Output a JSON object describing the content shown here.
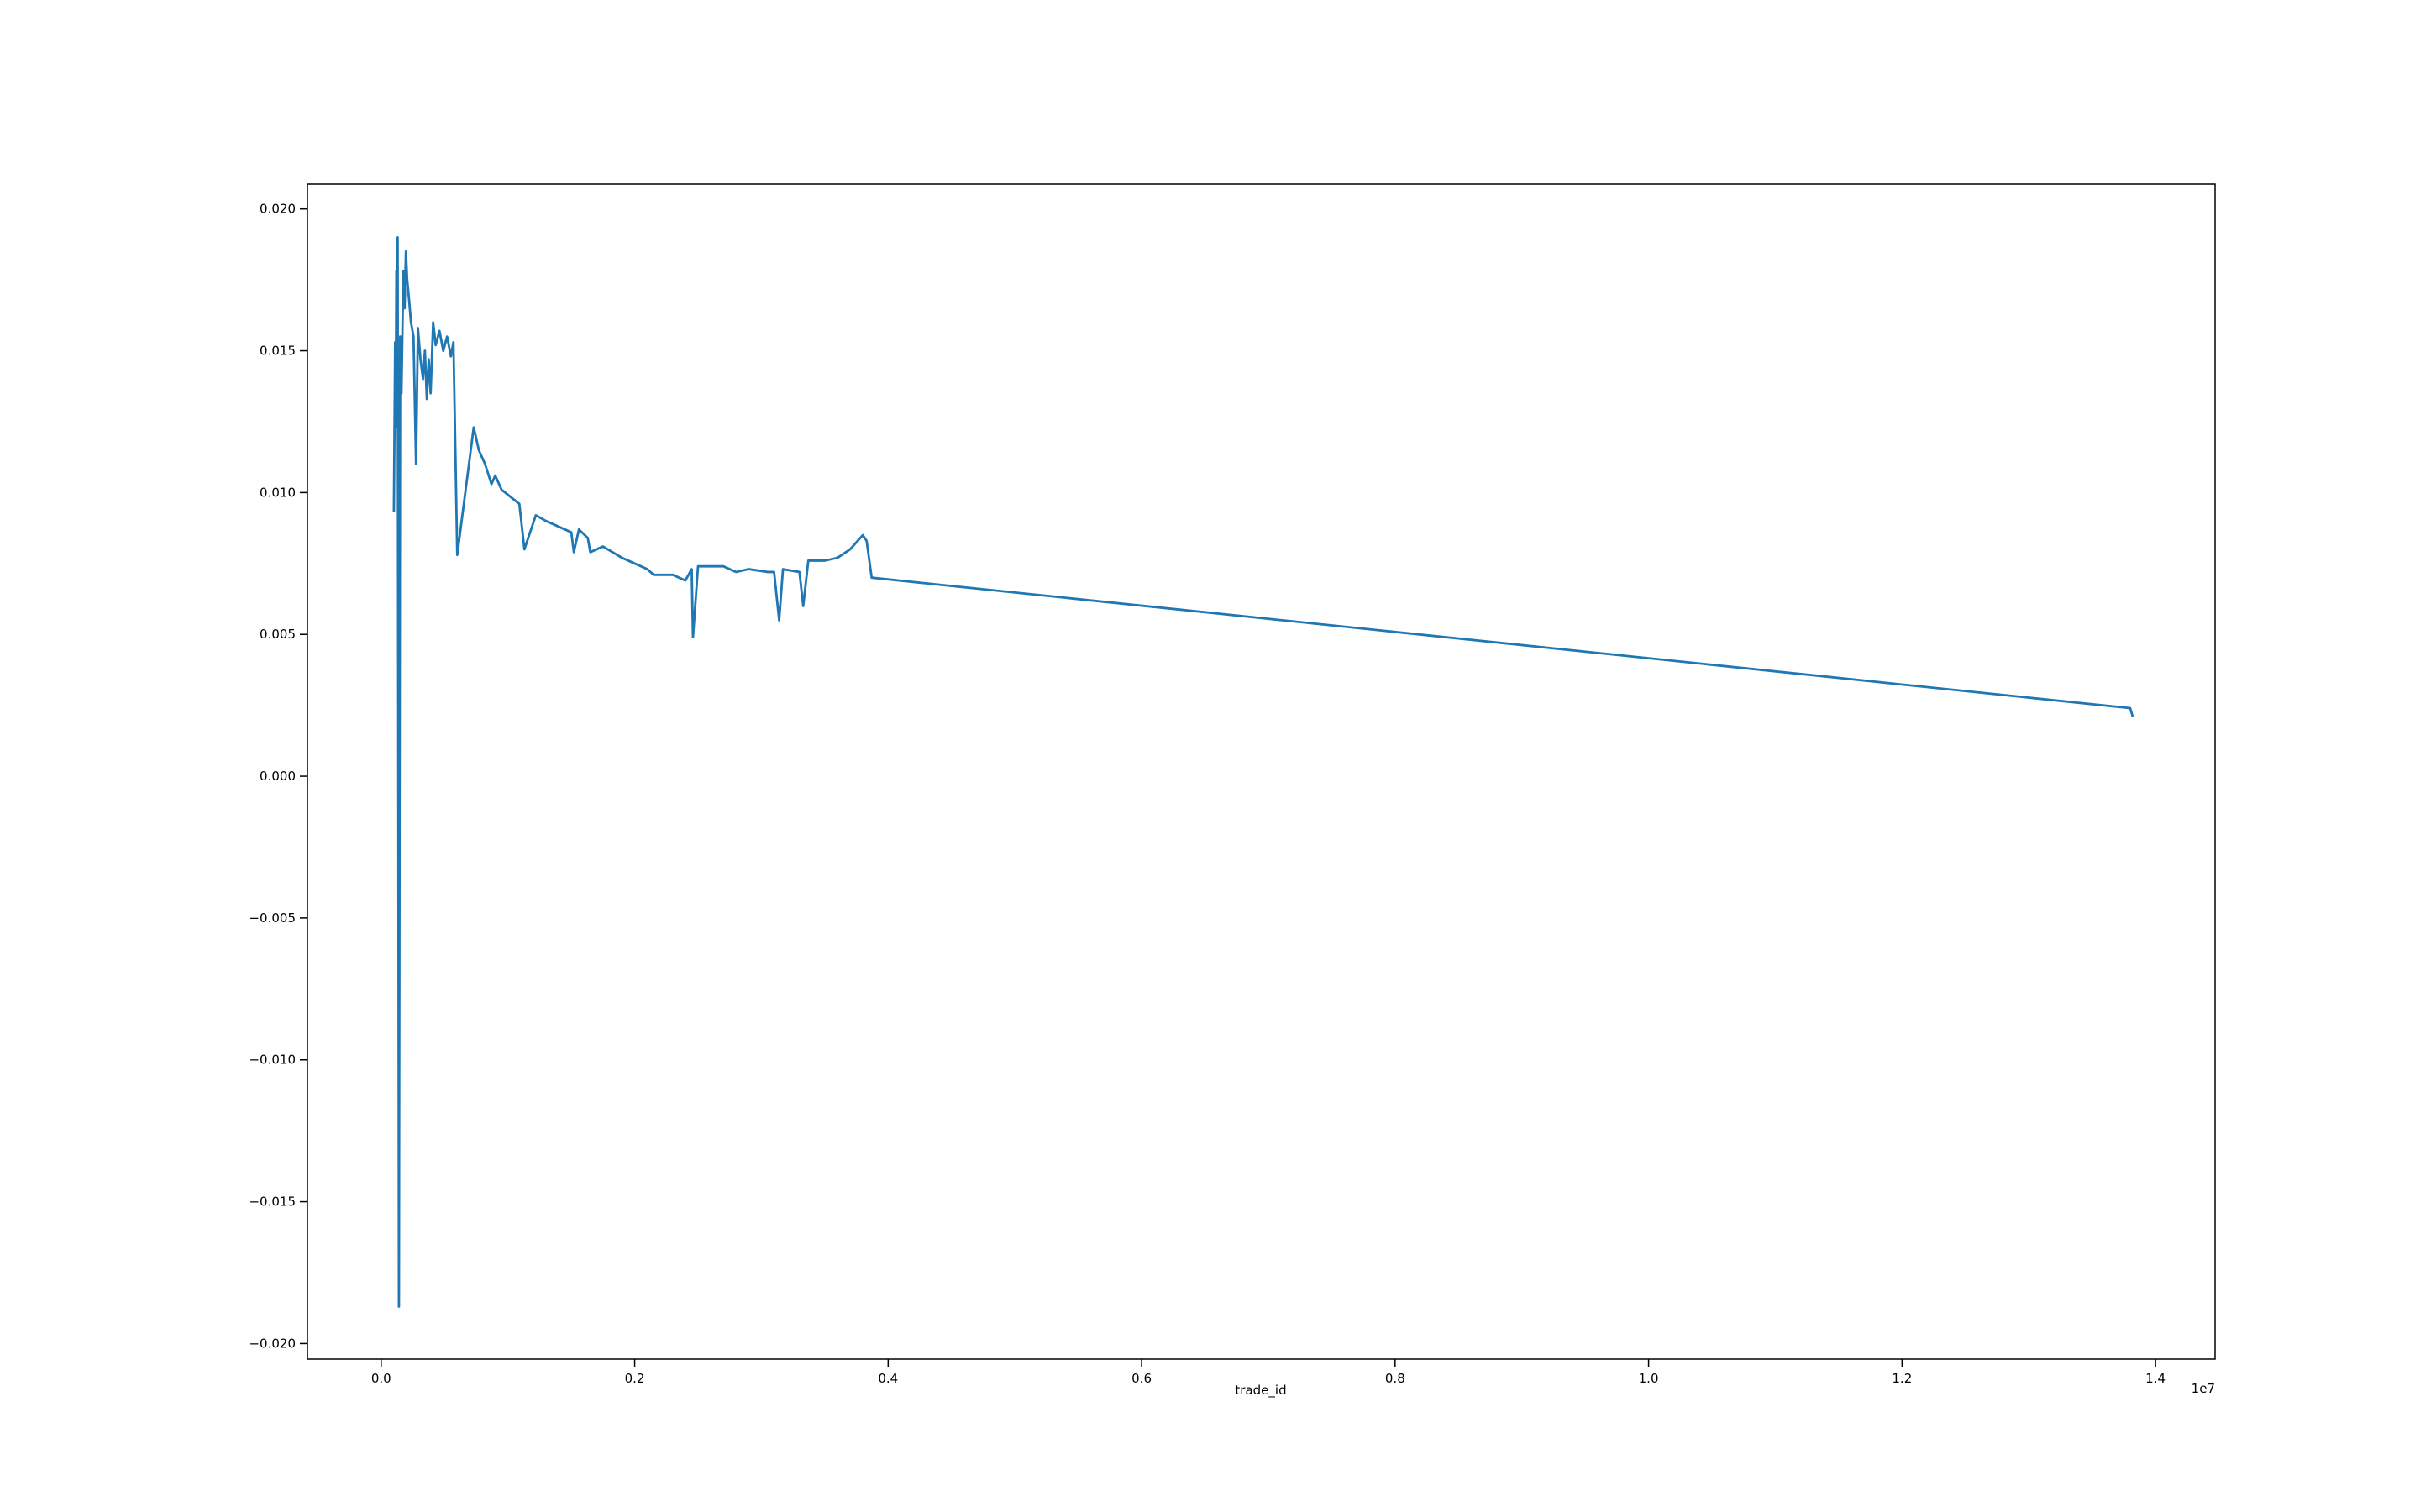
{
  "chart_data": {
    "type": "line",
    "xlabel": "trade_id",
    "x_offset_label": "1e7",
    "color": "#1f77b4",
    "xlim": [
      -582000,
      14470000
    ],
    "ylim": [
      -0.02055,
      0.02088
    ],
    "xticks": [
      {
        "value": 0,
        "label": "0.0"
      },
      {
        "value": 2000000,
        "label": "0.2"
      },
      {
        "value": 4000000,
        "label": "0.4"
      },
      {
        "value": 6000000,
        "label": "0.6"
      },
      {
        "value": 8000000,
        "label": "0.8"
      },
      {
        "value": 10000000,
        "label": "1.0"
      },
      {
        "value": 12000000,
        "label": "1.2"
      },
      {
        "value": 14000000,
        "label": "1.4"
      }
    ],
    "yticks": [
      {
        "value": -0.02,
        "label": "−0.020"
      },
      {
        "value": -0.015,
        "label": "−0.015"
      },
      {
        "value": -0.01,
        "label": "−0.010"
      },
      {
        "value": -0.005,
        "label": "−0.005"
      },
      {
        "value": 0,
        "label": "0.000"
      },
      {
        "value": 0.005,
        "label": "0.005"
      },
      {
        "value": 0.01,
        "label": "0.010"
      },
      {
        "value": 0.015,
        "label": "0.015"
      },
      {
        "value": 0.02,
        "label": "0.020"
      }
    ],
    "x": [
      100000,
      110000,
      115000,
      120000,
      125000,
      130000,
      140000,
      150000,
      160000,
      175000,
      185000,
      195000,
      205000,
      220000,
      235000,
      255000,
      275000,
      290000,
      310000,
      330000,
      345000,
      360000,
      375000,
      390000,
      410000,
      430000,
      460000,
      490000,
      520000,
      550000,
      570000,
      600000,
      730000,
      770000,
      820000,
      870000,
      900000,
      950000,
      1090000,
      1130000,
      1220000,
      1300000,
      1400000,
      1500000,
      1520000,
      1560000,
      1630000,
      1650000,
      1750000,
      1900000,
      2000000,
      2100000,
      2150000,
      2300000,
      2400000,
      2450000,
      2460000,
      2500000,
      2600000,
      2700000,
      2800000,
      2900000,
      3050000,
      3100000,
      3140000,
      3170000,
      3300000,
      3330000,
      3370000,
      3500000,
      3600000,
      3700000,
      3800000,
      3830000,
      3870000,
      13800000,
      13820000
    ],
    "values": [
      0.0093,
      0.0153,
      0.0127,
      0.0178,
      0.0123,
      0.019,
      -0.0187,
      0.0155,
      0.0135,
      0.0178,
      0.0165,
      0.0185,
      0.0175,
      0.0168,
      0.016,
      0.0155,
      0.011,
      0.0158,
      0.0147,
      0.014,
      0.015,
      0.0133,
      0.0147,
      0.0135,
      0.016,
      0.0152,
      0.0157,
      0.015,
      0.0155,
      0.0148,
      0.0153,
      0.0078,
      0.0123,
      0.0115,
      0.011,
      0.0103,
      0.0106,
      0.0101,
      0.0096,
      0.008,
      0.0092,
      0.009,
      0.0088,
      0.0086,
      0.0079,
      0.0087,
      0.0084,
      0.0079,
      0.0081,
      0.0077,
      0.0075,
      0.0073,
      0.0071,
      0.0071,
      0.0069,
      0.0073,
      0.0049,
      0.0074,
      0.0074,
      0.0074,
      0.0072,
      0.0073,
      0.0072,
      0.0072,
      0.0055,
      0.0073,
      0.0072,
      0.006,
      0.0076,
      0.0076,
      0.0077,
      0.008,
      0.0085,
      0.0083,
      0.007,
      0.0024,
      0.0021
    ]
  }
}
